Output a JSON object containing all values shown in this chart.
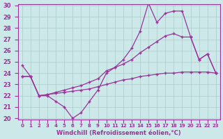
{
  "xlabel": "Windchill (Refroidissement éolien,°C)",
  "x_values": [
    0,
    1,
    2,
    3,
    4,
    5,
    6,
    7,
    8,
    9,
    10,
    11,
    12,
    13,
    14,
    15,
    16,
    17,
    18,
    19,
    20,
    21,
    22,
    23
  ],
  "line_zigzag": [
    24.7,
    23.7,
    22.0,
    22.0,
    21.5,
    21.0,
    20.0,
    20.5,
    21.5,
    22.5,
    24.0,
    24.5,
    25.2,
    26.2,
    27.7,
    30.2,
    28.5,
    29.3,
    29.5,
    29.5,
    27.2,
    25.2,
    25.7,
    24.0
  ],
  "line_upper_diag": [
    23.7,
    23.7,
    22.0,
    22.1,
    22.3,
    22.5,
    22.7,
    22.9,
    23.2,
    23.5,
    24.2,
    24.5,
    24.8,
    25.2,
    25.8,
    26.3,
    26.8,
    27.3,
    27.5,
    27.2,
    27.2,
    25.2,
    25.7,
    24.0
  ],
  "line_lower_flat": [
    23.7,
    23.7,
    22.0,
    22.1,
    22.2,
    22.3,
    22.4,
    22.5,
    22.6,
    22.8,
    23.0,
    23.2,
    23.4,
    23.5,
    23.7,
    23.8,
    23.9,
    24.0,
    24.0,
    24.1,
    24.1,
    24.1,
    24.1,
    24.0
  ],
  "ylim": [
    20,
    30
  ],
  "yticks": [
    20,
    21,
    22,
    23,
    24,
    25,
    26,
    27,
    28,
    29,
    30
  ],
  "bg_color": "#cce8e8",
  "grid_color": "#aacccc",
  "line_color": "#993399",
  "marker": "+"
}
